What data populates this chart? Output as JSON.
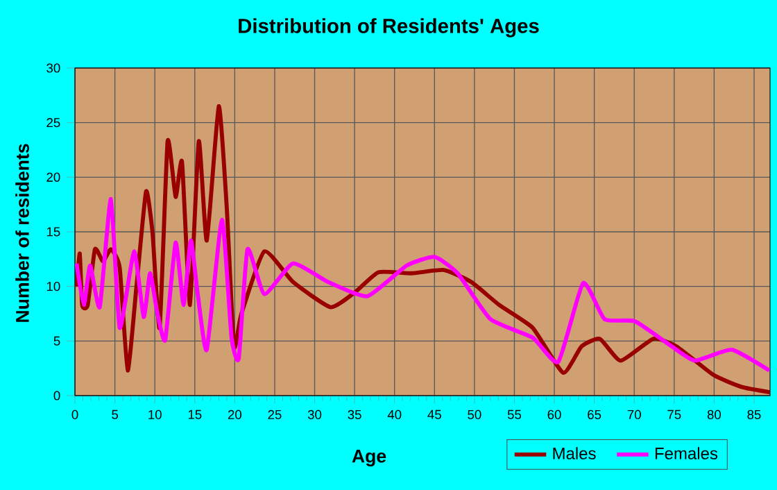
{
  "chart_data": {
    "type": "line",
    "title": "Distribution of Residents' Ages",
    "xlabel": "Age",
    "ylabel": "Number of residents",
    "xlim": [
      0,
      87
    ],
    "xticks": [
      0,
      5,
      10,
      15,
      20,
      25,
      30,
      35,
      40,
      45,
      50,
      55,
      60,
      65,
      70,
      75,
      80,
      85
    ],
    "ylim": [
      0,
      30
    ],
    "yticks": [
      0,
      5,
      10,
      15,
      20,
      25,
      30
    ],
    "grid": true,
    "legend": "bottom right",
    "marker": "none",
    "line_style": "solid",
    "series": [
      {
        "name": "Males",
        "color": "#990000",
        "x": [
          0.2,
          0.6,
          0.9,
          1.6,
          2.5,
          3.5,
          4.5,
          5.6,
          6.6,
          7.7,
          8.9,
          9.7,
          10.6,
          11.6,
          12.6,
          13.4,
          14.4,
          15.5,
          16.5,
          18.0,
          19.0,
          19.9,
          20.8,
          23.7,
          27.3,
          32,
          35.1,
          38,
          42.1,
          46.2,
          49.6,
          53.1,
          57.3,
          61.1,
          63.4,
          65.7,
          68.3,
          72.4,
          75.3,
          79.9,
          83.4,
          87
        ],
        "values": [
          10,
          13,
          8.3,
          8.3,
          13.4,
          12.3,
          13.4,
          11.7,
          2.3,
          10,
          18.7,
          15,
          6.2,
          23.3,
          18.2,
          21.4,
          8.3,
          23.3,
          14.2,
          26.5,
          17.2,
          4.5,
          7.4,
          13.2,
          10.4,
          8.1,
          9.5,
          11.3,
          11.2,
          11.5,
          10.4,
          8.3,
          6.2,
          2.1,
          4.5,
          5.2,
          3.2,
          5.2,
          4.5,
          1.9,
          0.8,
          0.3
        ]
      },
      {
        "name": "Females",
        "color": "#ff00ff",
        "x": [
          0.2,
          1.1,
          1.9,
          3.1,
          4.5,
          5.6,
          7.4,
          8.6,
          9.4,
          10.3,
          11.3,
          12.6,
          13.6,
          14.5,
          15.4,
          16.5,
          18.4,
          19.6,
          20.5,
          21.6,
          23.7,
          27.3,
          31.7,
          36.6,
          41.5,
          45,
          47.9,
          52,
          57.3,
          60.5,
          63.6,
          66.3,
          70.1,
          74.7,
          77.6,
          82.2,
          86.9
        ],
        "values": [
          12.1,
          8.3,
          11.9,
          8.1,
          18,
          6.2,
          13.2,
          7.2,
          11.2,
          7.6,
          5.1,
          14,
          8.3,
          14.2,
          9.1,
          4.2,
          16.1,
          5.3,
          3.4,
          13.4,
          9.3,
          12.1,
          10.4,
          9.1,
          11.9,
          12.7,
          11.2,
          7.0,
          5.3,
          3.1,
          10.3,
          7.0,
          6.8,
          4.5,
          3.2,
          4.2,
          2.3
        ]
      }
    ]
  }
}
